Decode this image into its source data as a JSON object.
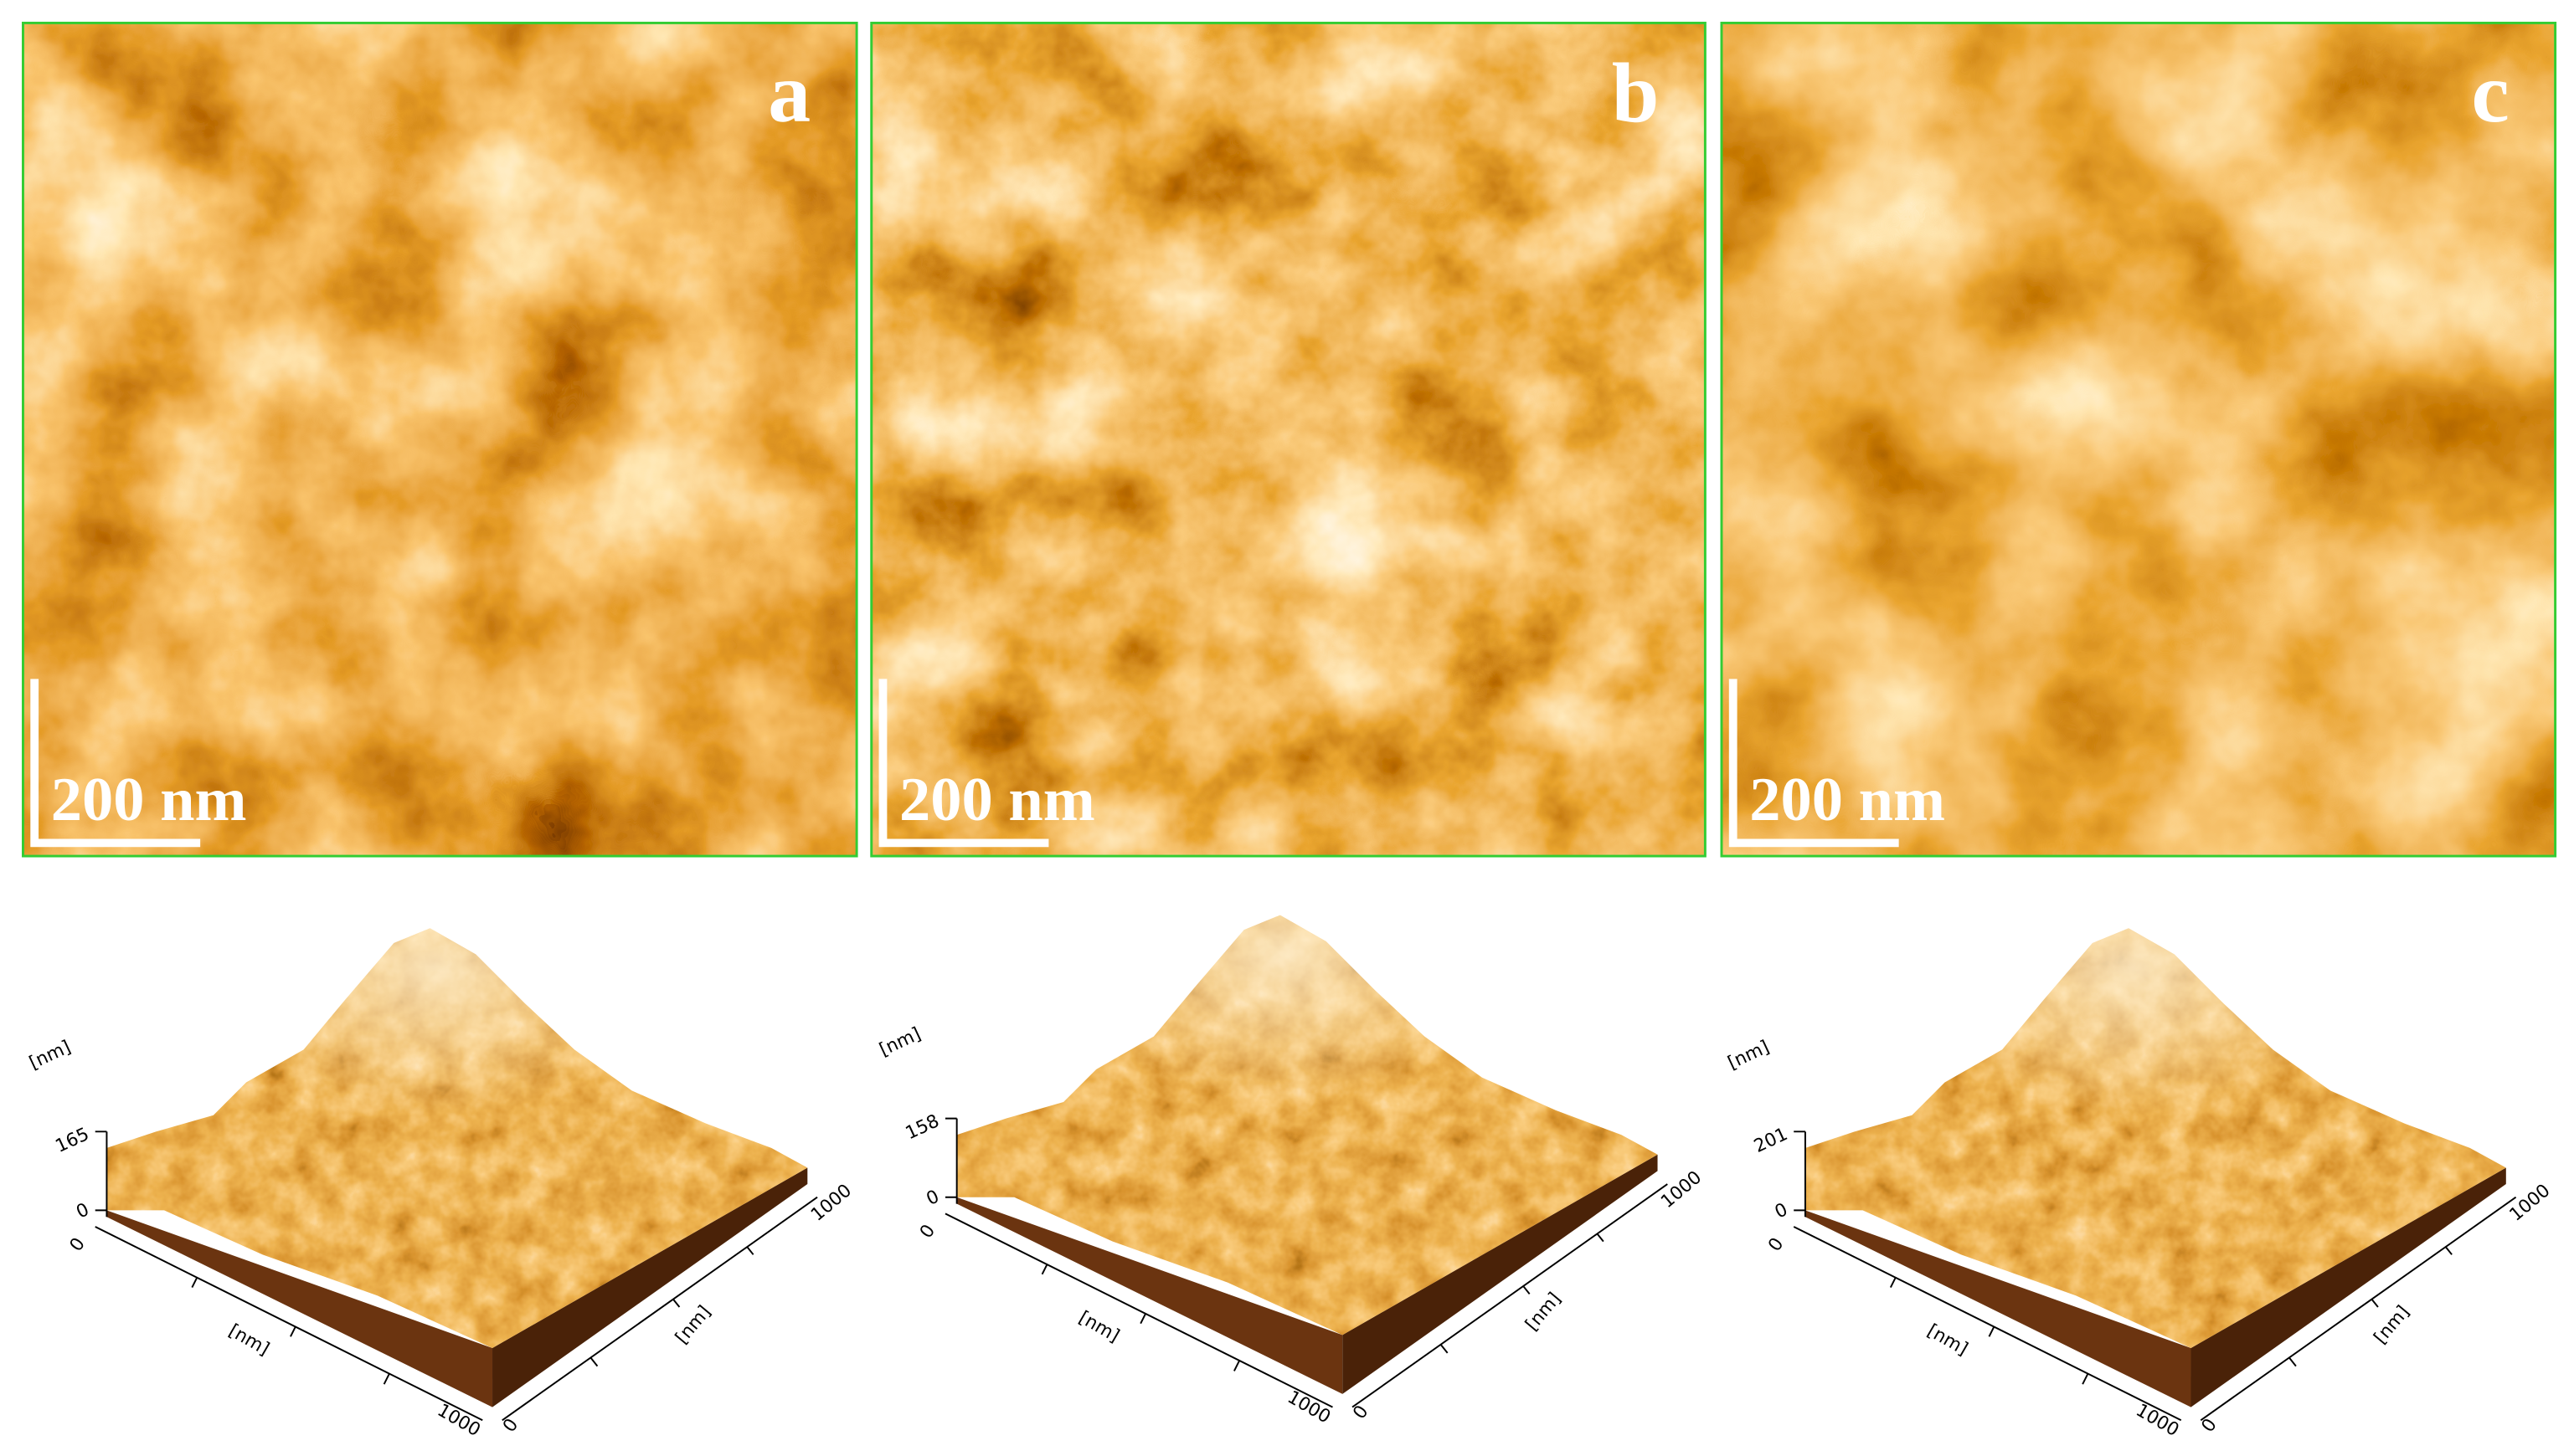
{
  "panels": [
    {
      "label": "a",
      "scale_bar": "200 nm",
      "plot_3d": {
        "z_unit": "[nm]",
        "z_ticks": [
          0,
          165
        ],
        "x_label": "[nm]",
        "x_ticks": [
          0,
          1000
        ],
        "y_label": "[nm]",
        "y_ticks": [
          0,
          1000
        ]
      }
    },
    {
      "label": "b",
      "scale_bar": "200 nm",
      "plot_3d": {
        "z_unit": "[nm]",
        "z_ticks": [
          0,
          158
        ],
        "x_label": "[nm]",
        "x_ticks": [
          0,
          1000
        ],
        "y_label": "[nm]",
        "y_ticks": [
          0,
          1000
        ]
      }
    },
    {
      "label": "c",
      "scale_bar": "200 nm",
      "plot_3d": {
        "z_unit": "[nm]",
        "z_ticks": [
          0,
          201
        ],
        "x_label": "[nm]",
        "x_ticks": [
          0,
          1000
        ],
        "y_label": "[nm]",
        "y_ticks": [
          0,
          1000
        ]
      }
    }
  ]
}
